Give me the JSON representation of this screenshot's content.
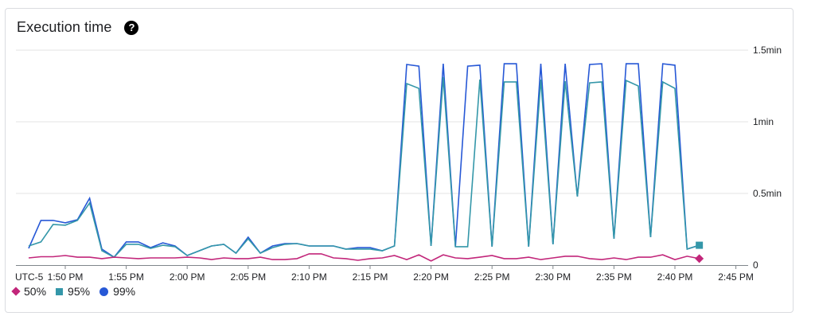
{
  "card": {
    "title": "Execution time",
    "help_icon": "?"
  },
  "colors": {
    "p50": "#c2267a",
    "p95": "#3497a9",
    "p99": "#2758d6",
    "grid": "#e3e3e3",
    "axis": "#80868b"
  },
  "legend": [
    {
      "label": "50%",
      "shape": "diamond",
      "color": "#c2267a"
    },
    {
      "label": "95%",
      "shape": "square",
      "color": "#3497a9"
    },
    {
      "label": "99%",
      "shape": "circle",
      "color": "#2758d6"
    }
  ],
  "chart_data": {
    "type": "line",
    "title": "Execution time",
    "xlabel": "",
    "ylabel": "",
    "timezone_label": "UTC-5",
    "x_tick_labels": [
      "1:50 PM",
      "1:55 PM",
      "2:00 PM",
      "2:05 PM",
      "2:10 PM",
      "2:15 PM",
      "2:20 PM",
      "2:25 PM",
      "2:30 PM",
      "2:35 PM",
      "2:40 PM",
      "2:45 PM"
    ],
    "y_tick_labels": [
      "0",
      "0.5min",
      "1min",
      "1.5min"
    ],
    "y_unit": "seconds",
    "ylim": [
      0,
      90
    ],
    "grid": true,
    "legend_position": "bottom-left",
    "x_minutes_from_1347": [
      0,
      1,
      2,
      3,
      4,
      5,
      6,
      7,
      8,
      9,
      10,
      11,
      12,
      13,
      14,
      15,
      16,
      17,
      18,
      19,
      20,
      21,
      22,
      23,
      24,
      25,
      26,
      27,
      28,
      29,
      30,
      31,
      32,
      33,
      34,
      35,
      36,
      37,
      38,
      39,
      40,
      41,
      42,
      43,
      44,
      45,
      46,
      47,
      48,
      49,
      50,
      51,
      52,
      53,
      54,
      55
    ],
    "x": [
      "1:47",
      "1:48",
      "1:49",
      "1:50",
      "1:51",
      "1:52",
      "1:53",
      "1:54",
      "1:55",
      "1:56",
      "1:57",
      "1:58",
      "1:59",
      "2:00",
      "2:01",
      "2:02",
      "2:03",
      "2:04",
      "2:05",
      "2:06",
      "2:07",
      "2:08",
      "2:09",
      "2:10",
      "2:11",
      "2:12",
      "2:13",
      "2:14",
      "2:15",
      "2:16",
      "2:17",
      "2:18",
      "2:19",
      "2:20",
      "2:21",
      "2:22",
      "2:23",
      "2:24",
      "2:25",
      "2:26",
      "2:27",
      "2:28",
      "2:29",
      "2:30",
      "2:31",
      "2:32",
      "2:33",
      "2:34",
      "2:35",
      "2:36",
      "2:37",
      "2:38",
      "2:39",
      "2:40",
      "2:41",
      "2:42"
    ],
    "series": [
      {
        "name": "50%",
        "values": [
          3,
          3.5,
          3.5,
          4,
          3.3,
          3.3,
          2.7,
          3.3,
          3,
          2.7,
          3,
          3,
          3,
          3.3,
          3,
          2.3,
          3,
          2.7,
          2.7,
          3.3,
          2.3,
          2.3,
          2.7,
          4.7,
          4.7,
          3,
          2.7,
          2,
          2.7,
          3,
          4,
          2.3,
          4.3,
          1.7,
          4.3,
          3,
          2.7,
          3.3,
          4,
          2.7,
          2.7,
          3.3,
          2.3,
          3,
          3.7,
          3.7,
          2.7,
          2.3,
          3,
          2.3,
          3.3,
          3.3,
          4.3,
          2.3,
          3.7,
          2.7
        ]
      },
      {
        "name": "95%",
        "values": [
          8,
          9.7,
          17,
          16.7,
          18.7,
          26,
          6,
          3.3,
          8.7,
          8.7,
          7,
          8.3,
          7.7,
          4,
          6,
          8,
          8.7,
          5,
          11,
          5,
          7.3,
          8.7,
          9,
          8,
          8,
          8,
          6.7,
          6.7,
          6.7,
          6,
          8,
          76,
          74,
          8,
          78.7,
          7.7,
          7.7,
          77.7,
          7.7,
          76.7,
          76.7,
          7.7,
          77.7,
          8.7,
          77,
          28.7,
          76.3,
          76.7,
          11,
          77.3,
          75,
          11.7,
          76.7,
          74,
          6.7,
          8.3
        ]
      },
      {
        "name": "99%",
        "values": [
          7,
          18.7,
          18.7,
          17.7,
          19,
          28,
          6.7,
          3.3,
          9.7,
          9.7,
          7.3,
          9.3,
          8,
          4,
          6,
          8,
          8.7,
          5,
          11.7,
          5,
          8,
          9,
          9,
          8,
          8,
          8,
          6.7,
          7.3,
          7.3,
          6,
          8,
          84,
          83.3,
          8,
          84.3,
          7.7,
          83.3,
          83.7,
          7.7,
          84.3,
          84.3,
          7.7,
          84.3,
          8.7,
          84.3,
          28.7,
          84,
          84.3,
          11,
          84.3,
          84.3,
          11.7,
          84.3,
          83.7,
          6.7,
          8.3
        ]
      }
    ]
  }
}
